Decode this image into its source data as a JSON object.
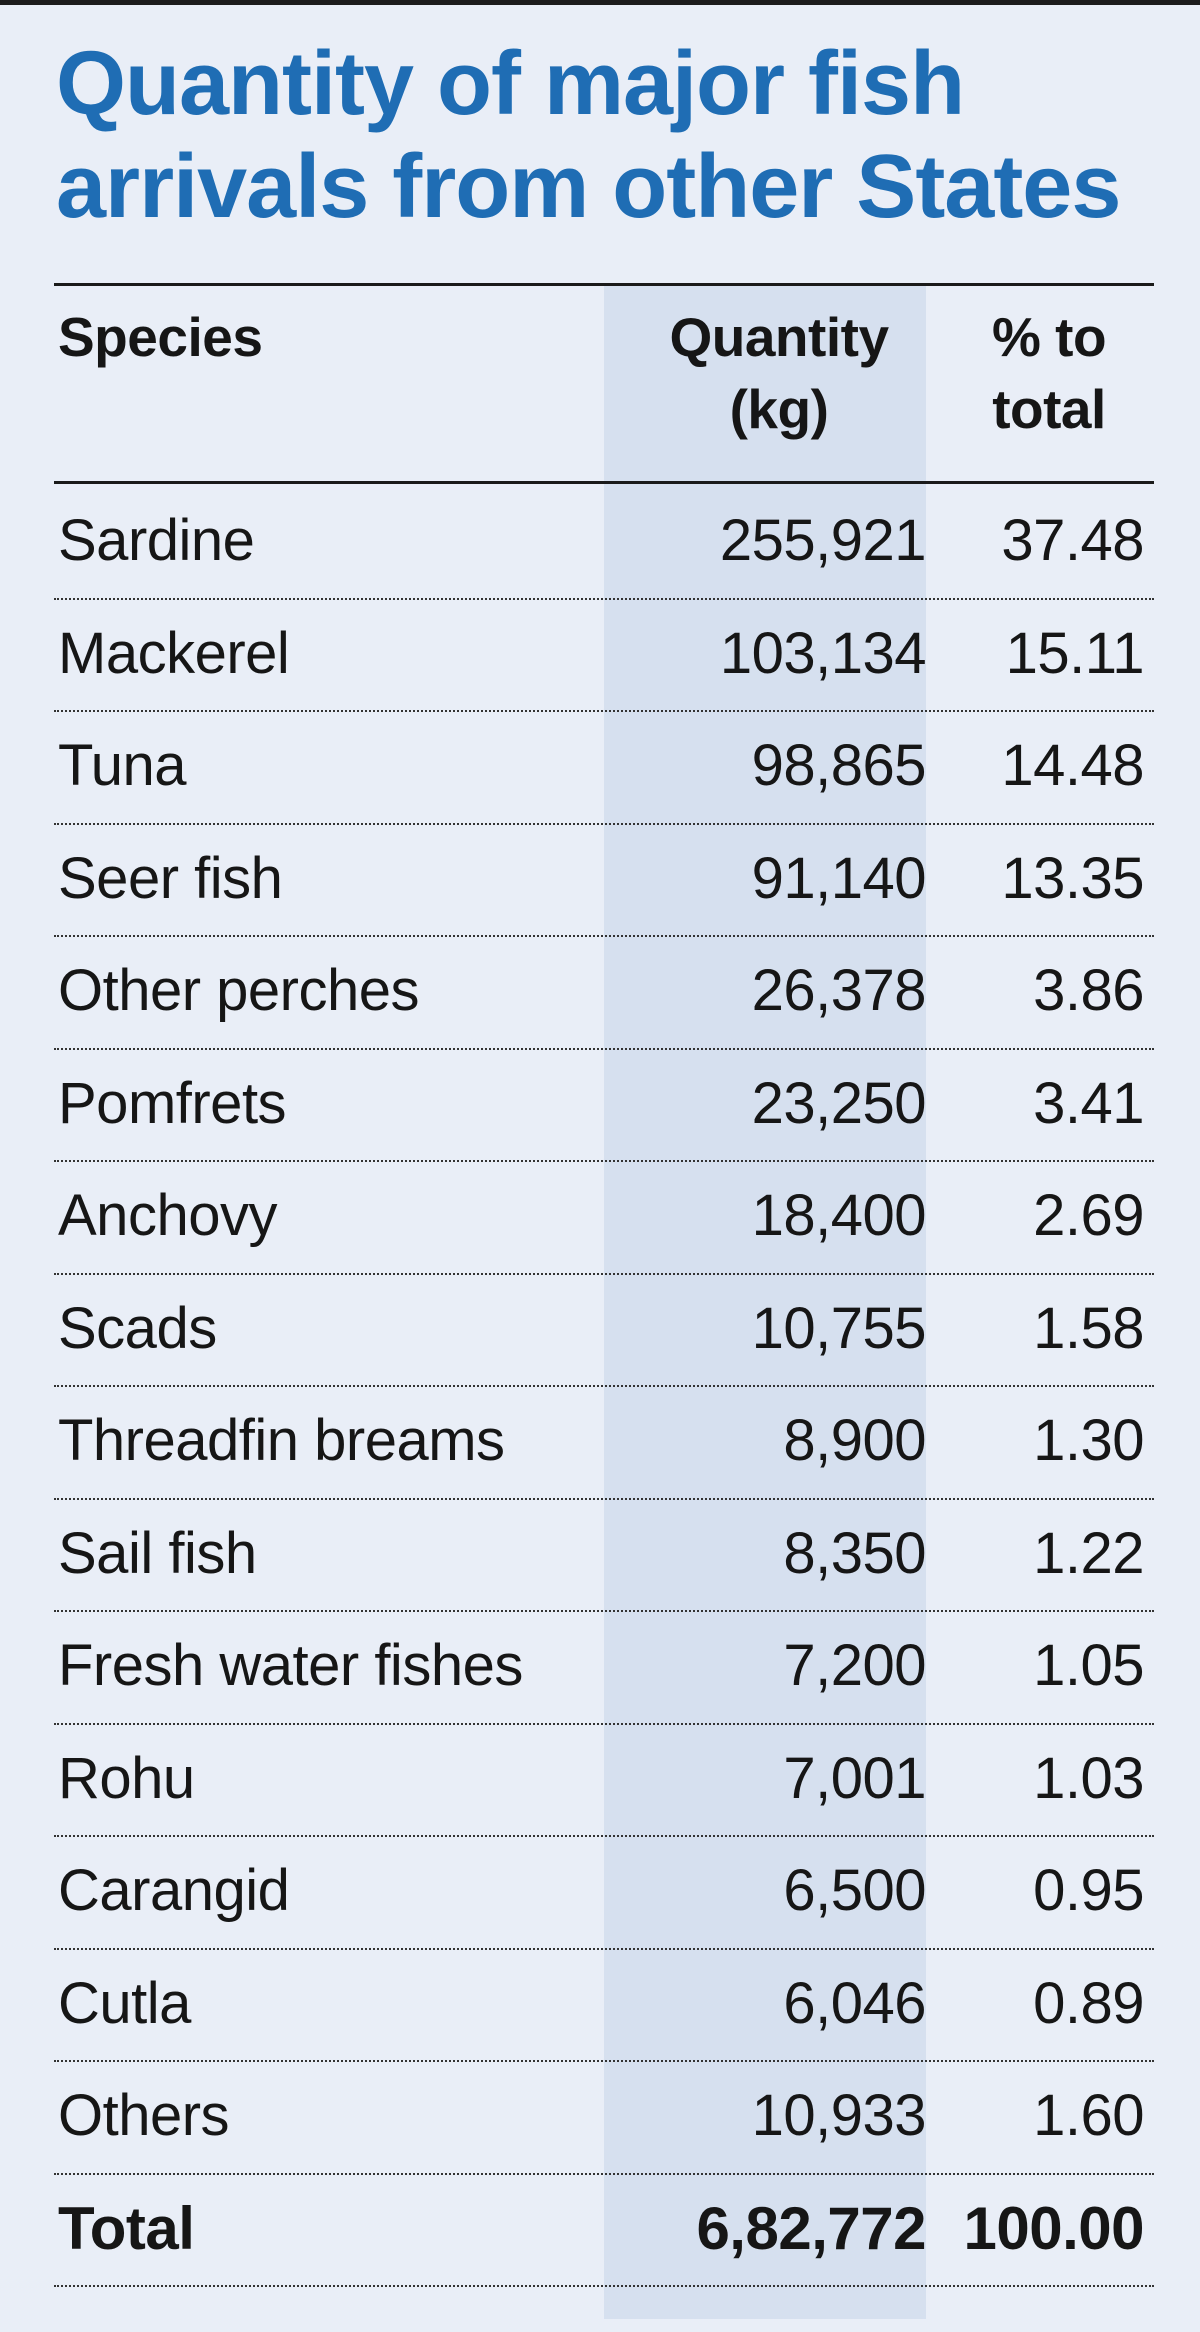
{
  "title_lines": [
    "Quantity of major fish",
    "arrivals from other States"
  ],
  "chart_data": {
    "type": "table",
    "title": "Quantity of major fish arrivals from other States",
    "columns": {
      "species": "Species",
      "quantity_line1": "Quantity",
      "quantity_line2": "(kg)",
      "pct_line1": "% to",
      "pct_line2": "total"
    },
    "rows": [
      {
        "species": "Sardine",
        "quantity": "255,921",
        "pct": "37.48"
      },
      {
        "species": "Mackerel",
        "quantity": "103,134",
        "pct": "15.11"
      },
      {
        "species": "Tuna",
        "quantity": "98,865",
        "pct": "14.48"
      },
      {
        "species": "Seer fish",
        "quantity": "91,140",
        "pct": "13.35"
      },
      {
        "species": "Other perches",
        "quantity": "26,378",
        "pct": "3.86"
      },
      {
        "species": "Pomfrets",
        "quantity": "23,250",
        "pct": "3.41"
      },
      {
        "species": "Anchovy",
        "quantity": "18,400",
        "pct": "2.69"
      },
      {
        "species": "Scads",
        "quantity": "10,755",
        "pct": "1.58"
      },
      {
        "species": "Threadfin breams",
        "quantity": "8,900",
        "pct": "1.30"
      },
      {
        "species": "Sail fish",
        "quantity": "8,350",
        "pct": "1.22"
      },
      {
        "species": "Fresh water fishes",
        "quantity": "7,200",
        "pct": "1.05"
      },
      {
        "species": "Rohu",
        "quantity": "7,001",
        "pct": "1.03"
      },
      {
        "species": "Carangid",
        "quantity": "6,500",
        "pct": "0.95"
      },
      {
        "species": "Cutla",
        "quantity": "6,046",
        "pct": "0.89"
      },
      {
        "species": "Others",
        "quantity": "10,933",
        "pct": "1.60"
      }
    ],
    "total": {
      "species": "Total",
      "quantity": "6,82,772",
      "pct": "100.00"
    }
  },
  "colors": {
    "title": "#1f6db4",
    "background": "#e9eef7",
    "quantity_band": "#d6e0ef",
    "text": "#161616"
  }
}
